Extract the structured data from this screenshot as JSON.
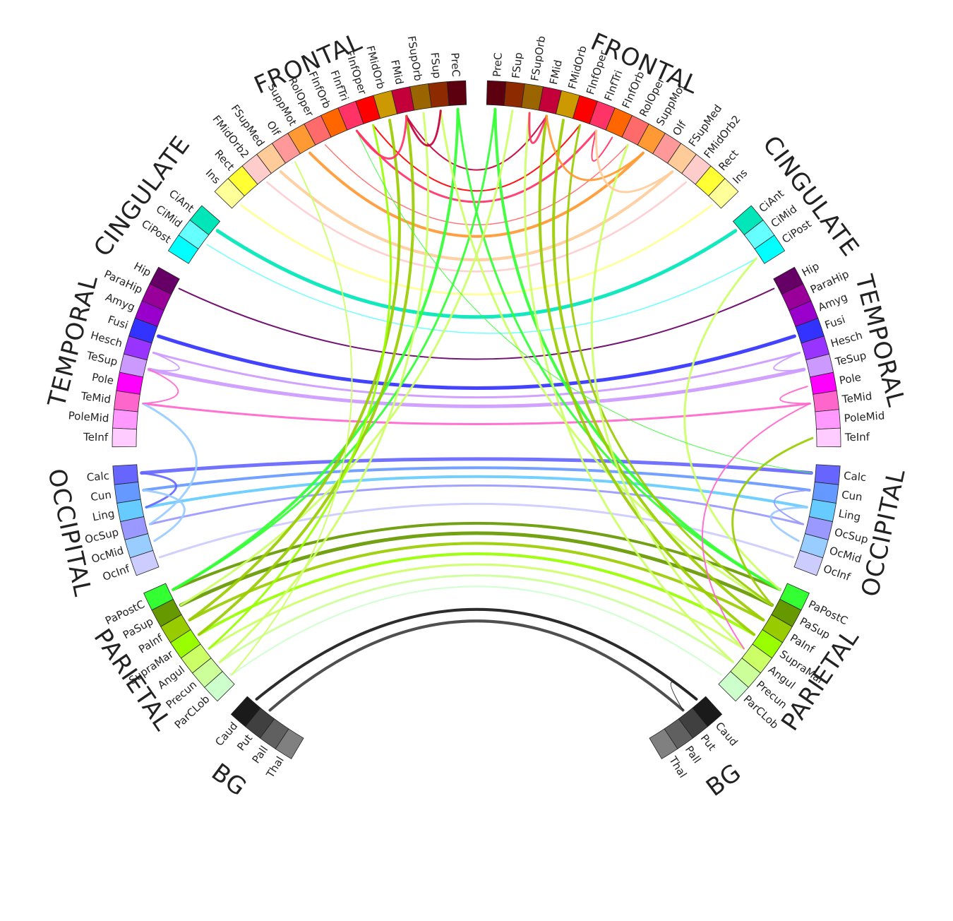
{
  "lobes_left": [
    {
      "name": "FRONTAL",
      "regions": [
        {
          "name": "PreC",
          "color": "#5c0010"
        },
        {
          "name": "FSup",
          "color": "#8e2a00"
        },
        {
          "name": "FSupOrb",
          "color": "#9a6400"
        },
        {
          "name": "FMid",
          "color": "#c4003a"
        },
        {
          "name": "FMidOrb",
          "color": "#cc9a00"
        },
        {
          "name": "FInfOper",
          "color": "#ff0000"
        },
        {
          "name": "FInfTri",
          "color": "#ff3366"
        },
        {
          "name": "FInfOrb",
          "color": "#ff6600"
        },
        {
          "name": "RolOper",
          "color": "#ff6a6a"
        },
        {
          "name": "SuppMot",
          "color": "#ff9933"
        },
        {
          "name": "Olf",
          "color": "#ff9999"
        },
        {
          "name": "FSupMed",
          "color": "#ffcc99"
        },
        {
          "name": "FMidOrb2",
          "color": "#ffcccc"
        },
        {
          "name": "Rect",
          "color": "#ffff33"
        },
        {
          "name": "Ins",
          "color": "#ffff99"
        }
      ]
    },
    {
      "name": "CINGULATE",
      "regions": [
        {
          "name": "CiAnt",
          "color": "#00e6b8"
        },
        {
          "name": "CiMid",
          "color": "#66ffff"
        },
        {
          "name": "CiPost",
          "color": "#00ffff"
        }
      ]
    },
    {
      "name": "TEMPORAL",
      "regions": [
        {
          "name": "Hip",
          "color": "#660066"
        },
        {
          "name": "ParaHip",
          "color": "#990099"
        },
        {
          "name": "Amyg",
          "color": "#9900cc"
        },
        {
          "name": "Fusi",
          "color": "#3333ff"
        },
        {
          "name": "Hesch",
          "color": "#9933ff"
        },
        {
          "name": "TeSup",
          "color": "#cc99ff"
        },
        {
          "name": "Pole",
          "color": "#ff00ff"
        },
        {
          "name": "TeMid",
          "color": "#ff66cc"
        },
        {
          "name": "PoleMid",
          "color": "#ff99ff"
        },
        {
          "name": "TeInf",
          "color": "#ffccff"
        }
      ]
    },
    {
      "name": "OCCIPITAL",
      "regions": [
        {
          "name": "Calc",
          "color": "#6666ff"
        },
        {
          "name": "Cun",
          "color": "#6699ff"
        },
        {
          "name": "Ling",
          "color": "#66ccff"
        },
        {
          "name": "OcSup",
          "color": "#9999ff"
        },
        {
          "name": "OcMid",
          "color": "#99ccff"
        },
        {
          "name": "OcInf",
          "color": "#ccccff"
        }
      ]
    },
    {
      "name": "PARIETAL",
      "regions": [
        {
          "name": "PaPostC",
          "color": "#33ff33"
        },
        {
          "name": "PaSup",
          "color": "#669900"
        },
        {
          "name": "PaInf",
          "color": "#99cc00"
        },
        {
          "name": "SupraMar",
          "color": "#99ff00"
        },
        {
          "name": "Angul",
          "color": "#ccff66"
        },
        {
          "name": "Precun",
          "color": "#ccff99"
        },
        {
          "name": "ParCLob",
          "color": "#ccffcc"
        }
      ]
    },
    {
      "name": "BG",
      "regions": [
        {
          "name": "Caud",
          "color": "#1a1a1a"
        },
        {
          "name": "Put",
          "color": "#404040"
        },
        {
          "name": "Pall",
          "color": "#606060"
        },
        {
          "name": "Thal",
          "color": "#808080"
        }
      ]
    }
  ],
  "lobes_right": [
    {
      "name": "FRONTAL",
      "regions": [
        {
          "name": "PreC",
          "color": "#5c0010"
        },
        {
          "name": "FSup",
          "color": "#8e2a00"
        },
        {
          "name": "FSupOrb",
          "color": "#9a6400"
        },
        {
          "name": "FMid",
          "color": "#c4003a"
        },
        {
          "name": "FMidOrb",
          "color": "#cc9a00"
        },
        {
          "name": "FInfOper",
          "color": "#ff0000"
        },
        {
          "name": "FInfTri",
          "color": "#ff3366"
        },
        {
          "name": "FInfOrb",
          "color": "#ff6600"
        },
        {
          "name": "RolOper",
          "color": "#ff6a6a"
        },
        {
          "name": "SuppMot",
          "color": "#ff9933"
        },
        {
          "name": "Olf",
          "color": "#ff9999"
        },
        {
          "name": "FSupMed",
          "color": "#ffcc99"
        },
        {
          "name": "FMidOrb2",
          "color": "#ffcccc"
        },
        {
          "name": "Rect",
          "color": "#ffff33"
        },
        {
          "name": "Ins",
          "color": "#ffff99"
        }
      ]
    },
    {
      "name": "CINGULATE",
      "regions": [
        {
          "name": "CiAnt",
          "color": "#00e6b8"
        },
        {
          "name": "CiMid",
          "color": "#66ffff"
        },
        {
          "name": "CiPost",
          "color": "#00ffff"
        }
      ]
    },
    {
      "name": "TEMPORAL",
      "regions": [
        {
          "name": "Hip",
          "color": "#660066"
        },
        {
          "name": "ParaHip",
          "color": "#990099"
        },
        {
          "name": "Amyg",
          "color": "#9900cc"
        },
        {
          "name": "Fusi",
          "color": "#3333ff"
        },
        {
          "name": "Hesch",
          "color": "#9933ff"
        },
        {
          "name": "TeSup",
          "color": "#cc99ff"
        },
        {
          "name": "Pole",
          "color": "#ff00ff"
        },
        {
          "name": "TeMid",
          "color": "#ff66cc"
        },
        {
          "name": "PoleMid",
          "color": "#ff99ff"
        },
        {
          "name": "TeInf",
          "color": "#ffccff"
        }
      ]
    },
    {
      "name": "OCCIPITAL",
      "regions": [
        {
          "name": "Calc",
          "color": "#6666ff"
        },
        {
          "name": "Cun",
          "color": "#6699ff"
        },
        {
          "name": "Ling",
          "color": "#66ccff"
        },
        {
          "name": "OcSup",
          "color": "#9999ff"
        },
        {
          "name": "OcMid",
          "color": "#99ccff"
        },
        {
          "name": "OcInf",
          "color": "#ccccff"
        }
      ]
    },
    {
      "name": "PARIETAL",
      "regions": [
        {
          "name": "PaPostC",
          "color": "#33ff33"
        },
        {
          "name": "PaSup",
          "color": "#669900"
        },
        {
          "name": "PaInf",
          "color": "#99cc00"
        },
        {
          "name": "SupraMar",
          "color": "#99ff00"
        },
        {
          "name": "Angul",
          "color": "#ccff66"
        },
        {
          "name": "Precun",
          "color": "#ccff99"
        },
        {
          "name": "ParCLob",
          "color": "#ccffcc"
        }
      ]
    },
    {
      "name": "BG",
      "regions": [
        {
          "name": "Caud",
          "color": "#1a1a1a"
        },
        {
          "name": "Put",
          "color": "#404040"
        },
        {
          "name": "Pall",
          "color": "#606060"
        },
        {
          "name": "Thal",
          "color": "#808080"
        }
      ]
    }
  ],
  "connections": [
    {
      "from": "L.Hip",
      "to": "R.Hip",
      "weight": 2,
      "color": "#660066"
    },
    {
      "from": "L.Fusi",
      "to": "R.Fusi",
      "weight": 5,
      "color": "#3333ff"
    },
    {
      "from": "L.Hesch",
      "to": "R.Hesch",
      "weight": 3,
      "color": "#cc99ff"
    },
    {
      "from": "L.TeSup",
      "to": "R.TeSup",
      "weight": 5,
      "color": "#cc99ff"
    },
    {
      "from": "L.TeMid",
      "to": "R.TeMid",
      "weight": 3,
      "color": "#ff66cc"
    },
    {
      "from": "L.CiAnt",
      "to": "R.CiAnt",
      "weight": 5,
      "color": "#00e6b8"
    },
    {
      "from": "L.CiMid",
      "to": "R.CiPost",
      "weight": 1.5,
      "color": "#66ffff"
    },
    {
      "from": "L.Ins",
      "to": "R.Ins",
      "weight": 3,
      "color": "#ffff99"
    },
    {
      "from": "L.FMidOrb2",
      "to": "R.FMidOrb2",
      "weight": 2.5,
      "color": "#ffcccc"
    },
    {
      "from": "L.FSupMed",
      "to": "R.FSupMed",
      "weight": 4,
      "color": "#ffcc99"
    },
    {
      "from": "L.SuppMot",
      "to": "R.SuppMot",
      "weight": 4,
      "color": "#ff9933"
    },
    {
      "from": "L.RolOper",
      "to": "R.RolOper",
      "weight": 1.5,
      "color": "#ff6a6a"
    },
    {
      "from": "L.FInfTri",
      "to": "R.FInfTri",
      "weight": 3,
      "color": "#ff3366"
    },
    {
      "from": "L.FInfOper",
      "to": "R.FInfOper",
      "weight": 2,
      "color": "#ff0000"
    },
    {
      "from": "L.FMid",
      "to": "R.FMid",
      "weight": 2,
      "color": "#c4003a"
    },
    {
      "from": "L.Calc",
      "to": "R.Calc",
      "weight": 5,
      "color": "#6666ff"
    },
    {
      "from": "L.Cun",
      "to": "R.Cun",
      "weight": 4,
      "color": "#6699ff"
    },
    {
      "from": "L.Ling",
      "to": "R.Ling",
      "weight": 4,
      "color": "#66ccff"
    },
    {
      "from": "L.OcSup",
      "to": "R.OcSup",
      "weight": 3,
      "color": "#9999ff"
    },
    {
      "from": "L.OcInf",
      "to": "R.OcInf",
      "weight": 3,
      "color": "#ccccff"
    },
    {
      "from": "L.PaPostC",
      "to": "R.PaPostC",
      "weight": 4,
      "color": "#669900"
    },
    {
      "from": "L.PaSup",
      "to": "R.PaSup",
      "weight": 5,
      "color": "#669900"
    },
    {
      "from": "L.PaInf",
      "to": "R.PaInf",
      "weight": 4,
      "color": "#99cc00"
    },
    {
      "from": "L.SupraMar",
      "to": "R.SupraMar",
      "weight": 4,
      "color": "#99ff00"
    },
    {
      "from": "L.Angul",
      "to": "R.Angul",
      "weight": 3,
      "color": "#ccff66"
    },
    {
      "from": "L.Precun",
      "to": "R.Precun",
      "weight": 3,
      "color": "#ccff99"
    },
    {
      "from": "L.ParCLob",
      "to": "R.ParCLob",
      "weight": 2,
      "color": "#ccffcc"
    },
    {
      "from": "L.Caud",
      "to": "R.Caud",
      "weight": 4,
      "color": "#1a1a1a"
    },
    {
      "from": "L.Put",
      "to": "R.Put",
      "weight": 4,
      "color": "#404040"
    },
    {
      "from": "L.PreC",
      "to": "L.PaPostC",
      "weight": 4,
      "color": "#33ff33"
    },
    {
      "from": "L.PreC",
      "to": "R.PaPostC",
      "weight": 3,
      "color": "#33ff33"
    },
    {
      "from": "R.PreC",
      "to": "R.PaPostC",
      "weight": 4,
      "color": "#33ff33"
    },
    {
      "from": "R.PreC",
      "to": "L.PaPostC",
      "weight": 3,
      "color": "#33ff33"
    },
    {
      "from": "L.FSup",
      "to": "R.PaSup",
      "weight": 3,
      "color": "#ccff66"
    },
    {
      "from": "R.FSup",
      "to": "L.PaSup",
      "weight": 3,
      "color": "#ccff66"
    },
    {
      "from": "L.FMid",
      "to": "L.SupraMar",
      "weight": 4,
      "color": "#99cc00"
    },
    {
      "from": "L.FMidOrb",
      "to": "L.PaInf",
      "weight": 4,
      "color": "#99cc00"
    },
    {
      "from": "R.FMid",
      "to": "R.SupraMar",
      "weight": 4,
      "color": "#99cc00"
    },
    {
      "from": "R.FMidOrb",
      "to": "R.PaInf",
      "weight": 4,
      "color": "#99cc00"
    },
    {
      "from": "R.FInfOper",
      "to": "R.PaSup",
      "weight": 3,
      "color": "#99cc00"
    },
    {
      "from": "L.FInfOper",
      "to": "L.Angul",
      "weight": 3,
      "color": "#99ff00"
    },
    {
      "from": "L.FSupOrb",
      "to": "L.Precun",
      "weight": 3,
      "color": "#ccff66"
    },
    {
      "from": "R.FSupOrb",
      "to": "R.Precun",
      "weight": 3,
      "color": "#ccff66"
    },
    {
      "from": "L.Olf",
      "to": "L.ParCLob",
      "weight": 2,
      "color": "#ccff66"
    },
    {
      "from": "R.RolOper",
      "to": "R.Angul",
      "weight": 3,
      "color": "#ccff66"
    },
    {
      "from": "R.CiPost",
      "to": "R.PaPostC",
      "weight": 3,
      "color": "#ccff66"
    },
    {
      "from": "R.TeMid",
      "to": "R.Angul",
      "weight": 2,
      "color": "#ff66cc"
    },
    {
      "from": "R.TeInf",
      "to": "R.PaSup",
      "weight": 3,
      "color": "#99cc00"
    },
    {
      "from": "L.FInfTri",
      "to": "R.Calc",
      "weight": 1,
      "color": "#33ff33"
    },
    {
      "from": "L.TeMid",
      "to": "L.OcSup",
      "weight": 3,
      "color": "#99ccff"
    },
    {
      "from": "L.FMid",
      "to": "L.FSup",
      "weight": 3,
      "color": "#c4003a"
    },
    {
      "from": "L.FInfTri",
      "to": "L.FMid",
      "weight": 3,
      "color": "#ff3366"
    },
    {
      "from": "R.FMid",
      "to": "R.FSupOrb",
      "weight": 3,
      "color": "#ff3366"
    },
    {
      "from": "R.FInfTri",
      "to": "R.FInfOrb",
      "weight": 2,
      "color": "#ff3366"
    },
    {
      "from": "R.SuppMot",
      "to": "R.FMid",
      "weight": 3,
      "color": "#ff9933"
    },
    {
      "from": "R.FSupMed",
      "to": "R.FInfTri",
      "weight": 3,
      "color": "#ffcc99"
    },
    {
      "from": "L.TeSup",
      "to": "L.Hesch",
      "weight": 2,
      "color": "#cc99ff"
    },
    {
      "from": "R.TeSup",
      "to": "R.Hesch",
      "weight": 2,
      "color": "#cc99ff"
    },
    {
      "from": "L.TeMid",
      "to": "L.TeSup",
      "weight": 2,
      "color": "#ff66cc"
    },
    {
      "from": "R.TeMid",
      "to": "R.Pole",
      "weight": 2,
      "color": "#ff66cc"
    },
    {
      "from": "L.Ling",
      "to": "L.Calc",
      "weight": 3,
      "color": "#6666ff"
    },
    {
      "from": "L.OcMid",
      "to": "L.Cun",
      "weight": 3,
      "color": "#99ccff"
    },
    {
      "from": "R.OcMid",
      "to": "R.Ling",
      "weight": 3,
      "color": "#99ccff"
    },
    {
      "from": "R.OcSup",
      "to": "R.Cun",
      "weight": 2,
      "color": "#9999ff"
    },
    {
      "from": "R.Caud",
      "to": "R.Put",
      "weight": 1,
      "color": "#1a1a1a"
    }
  ]
}
